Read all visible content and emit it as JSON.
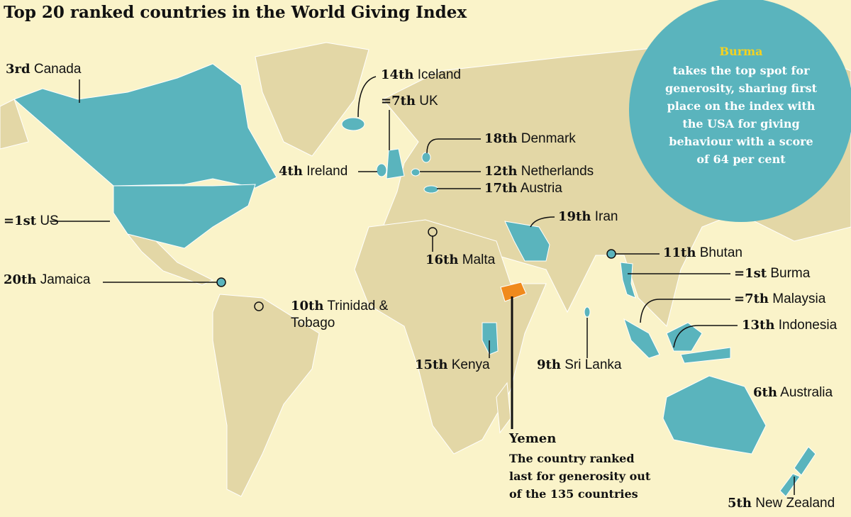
{
  "title": "Top 20 ranked countries in the World Giving Index",
  "callout": {
    "highlight": "Burma",
    "lines": [
      "takes the top spot for",
      "generosity, sharing first",
      "place on the index with",
      "the USA for giving",
      "behaviour with a score",
      "of 64 per cent"
    ]
  },
  "labels": [
    {
      "rank": "3rd",
      "country": "Canada"
    },
    {
      "rank": "14th",
      "country": "Iceland"
    },
    {
      "rank": "=7th",
      "country": "UK"
    },
    {
      "rank": "18th",
      "country": "Denmark"
    },
    {
      "rank": "4th",
      "country": "Ireland"
    },
    {
      "rank": "12th",
      "country": "Netherlands"
    },
    {
      "rank": "17th",
      "country": "Austria"
    },
    {
      "rank": "=1st",
      "country": "US"
    },
    {
      "rank": "19th",
      "country": "Iran"
    },
    {
      "rank": "16th",
      "country": "Malta"
    },
    {
      "rank": "11th",
      "country": "Bhutan"
    },
    {
      "rank": "=1st",
      "country": "Burma"
    },
    {
      "rank": "20th",
      "country": "Jamaica"
    },
    {
      "rank": "=7th",
      "country": "Malaysia"
    },
    {
      "rank": "10th",
      "country": "Trinidad & Tobago"
    },
    {
      "rank": "13th",
      "country": "Indonesia"
    },
    {
      "rank": "15th",
      "country": "Kenya"
    },
    {
      "rank": "9th",
      "country": "Sri Lanka"
    },
    {
      "rank": "6th",
      "country": "Australia"
    },
    {
      "rank": "5th",
      "country": "New Zealand"
    }
  ],
  "yemen": {
    "title": "Yemen",
    "lines": [
      "The country ranked",
      "last for generosity out",
      "of the 135 countries"
    ]
  }
}
